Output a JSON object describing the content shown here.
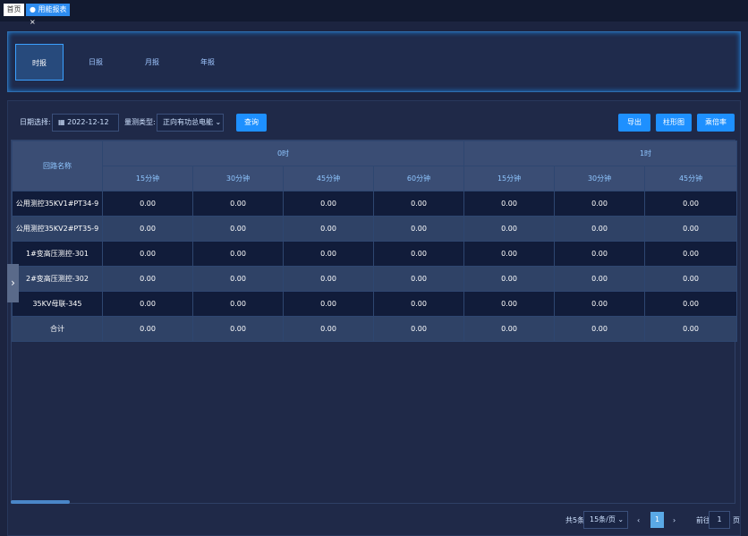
{
  "breadcrumb": {
    "home": "首页",
    "current": "用能报表"
  },
  "tabs": [
    "时报",
    "日报",
    "月报",
    "年报"
  ],
  "filters": {
    "date_label": "日期选择:",
    "date": "2022-12-12",
    "type_label": "量测类型:",
    "type": "正向有功总电能",
    "query": "查询"
  },
  "actions": [
    "导出",
    "柱形图",
    "乘倍率"
  ],
  "table": {
    "name_header": "回路名称",
    "groups": [
      "0时",
      "1时"
    ],
    "columns": [
      "15分钟",
      "30分钟",
      "45分钟",
      "60分钟",
      "15分钟",
      "30分钟",
      "45分钟"
    ],
    "rows": [
      {
        "name": "公用测控35KV1#PT34-9",
        "values": [
          "0.00",
          "0.00",
          "0.00",
          "0.00",
          "0.00",
          "0.00",
          "0.00"
        ]
      },
      {
        "name": "公用测控35KV2#PT35-9",
        "values": [
          "0.00",
          "0.00",
          "0.00",
          "0.00",
          "0.00",
          "0.00",
          "0.00"
        ]
      },
      {
        "name": "1#变高压测控-301",
        "values": [
          "0.00",
          "0.00",
          "0.00",
          "0.00",
          "0.00",
          "0.00",
          "0.00"
        ]
      },
      {
        "name": "2#变高压测控-302",
        "values": [
          "0.00",
          "0.00",
          "0.00",
          "0.00",
          "0.00",
          "0.00",
          "0.00"
        ]
      },
      {
        "name": "35KV母联-345",
        "values": [
          "0.00",
          "0.00",
          "0.00",
          "0.00",
          "0.00",
          "0.00",
          "0.00"
        ]
      },
      {
        "name": "合计",
        "values": [
          "0.00",
          "0.00",
          "0.00",
          "0.00",
          "0.00",
          "0.00",
          "0.00"
        ]
      }
    ]
  },
  "pagination": {
    "total": "共5条",
    "page_size": "15条/页",
    "page": 1,
    "goto": "前往",
    "goto_value": 1,
    "page_unit": "页"
  }
}
